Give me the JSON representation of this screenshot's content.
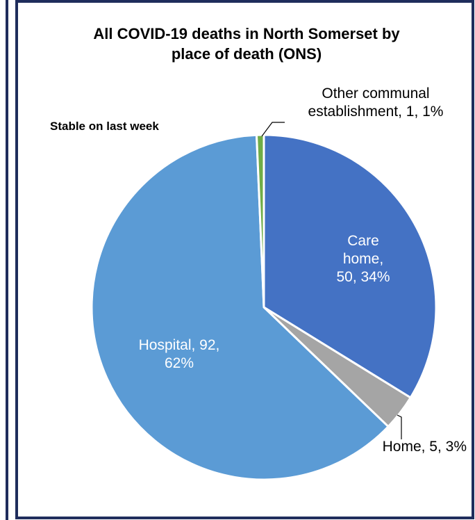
{
  "chart_data": {
    "type": "pie",
    "title": "All COVID-19 deaths in North Somerset by place of death (ONS)",
    "annotation": "Stable on last week",
    "categories": [
      "Care home",
      "Home",
      "Hospital",
      "Other communal establishment"
    ],
    "values": [
      50,
      5,
      92,
      1
    ],
    "value_labels": [
      "Care home, 50, 34%",
      "Home, 5, 3%",
      "Hospital, 92, 62%",
      "Other communal establishment, 1, 1%"
    ],
    "colors": [
      "#4472c4",
      "#a5a5a5",
      "#5b9bd5",
      "#70ad47"
    ]
  }
}
